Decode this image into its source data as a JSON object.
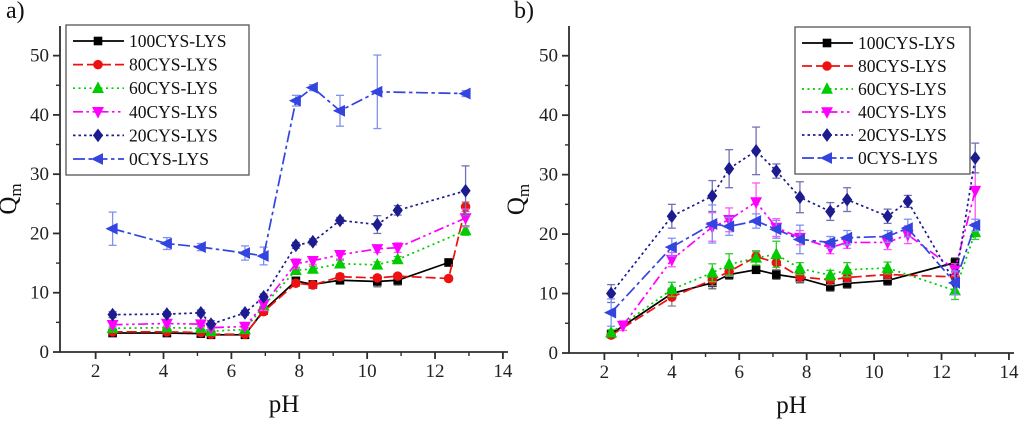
{
  "figure": {
    "panels": [
      {
        "label": "a)"
      },
      {
        "label": "b)"
      }
    ]
  },
  "chart_data": [
    {
      "panel": "a",
      "type": "line",
      "title": "",
      "xlabel": "pH",
      "ylabel": "Q",
      "ylabel_subscript": "m",
      "xlim": [
        0.95,
        14.15
      ],
      "ylim": [
        0,
        55
      ],
      "x_major_ticks": [
        2,
        4,
        6,
        8,
        10,
        12,
        14
      ],
      "x_minor_ticks": [
        3,
        5,
        7,
        9,
        11,
        13
      ],
      "y_major_ticks": [
        0,
        10,
        20,
        30,
        40,
        50
      ],
      "y_minor_ticks": [
        5,
        15,
        25,
        35,
        45
      ],
      "grid": false,
      "legend_position": "top-left",
      "x": [
        2.5,
        4.1,
        5.1,
        5.4,
        6.4,
        6.95,
        7.9,
        8.4,
        9.2,
        10.3,
        10.9,
        12.4,
        12.9
      ],
      "series": [
        {
          "name": "100CYS-LYS",
          "color": "#000000",
          "error_color": "#666666",
          "marker": "square",
          "line_style": "solid",
          "values": [
            3.2,
            3.2,
            3.1,
            2.9,
            2.9,
            7.0,
            12.0,
            11.4,
            12.1,
            11.9,
            12.1,
            15.1,
            null
          ],
          "errors": [
            0.3,
            0.3,
            0.3,
            0.3,
            0.3,
            0.4,
            0.5,
            0.4,
            0.6,
            0.9,
            0.8,
            0.5,
            null
          ]
        },
        {
          "name": "80CYS-LYS",
          "color": "#ee1111",
          "error_color": "#888888",
          "marker": "circle",
          "line_style": "dash",
          "values": [
            3.4,
            3.4,
            3.3,
            3.0,
            3.0,
            6.8,
            11.6,
            11.3,
            12.7,
            12.5,
            12.8,
            12.4,
            24.5
          ],
          "errors": [
            0.3,
            0.3,
            0.3,
            0.3,
            0.3,
            0.4,
            0.5,
            0.4,
            0.5,
            0.4,
            0.4,
            0.4,
            0.8
          ]
        },
        {
          "name": "60CYS-LYS",
          "color": "#00cc00",
          "error_color": "#33cc33",
          "marker": "triangle-up",
          "line_style": "dot",
          "values": [
            4.0,
            4.1,
            4.0,
            3.5,
            3.8,
            7.8,
            13.8,
            14.0,
            14.9,
            14.7,
            15.6,
            null,
            20.5
          ],
          "errors": [
            0.3,
            0.3,
            0.4,
            0.3,
            0.3,
            0.6,
            0.5,
            0.5,
            0.6,
            0.5,
            0.5,
            null,
            0.8
          ]
        },
        {
          "name": "40CYS-LYS",
          "color": "#ff00ff",
          "error_color": "#ff55ff",
          "marker": "triangle-down",
          "line_style": "dashdotdot",
          "values": [
            4.6,
            4.8,
            4.7,
            4.1,
            4.3,
            8.0,
            14.9,
            15.4,
            16.4,
            17.4,
            17.6,
            null,
            22.6
          ],
          "errors": [
            0.4,
            0.5,
            0.5,
            0.4,
            0.4,
            1.0,
            0.8,
            0.6,
            0.7,
            0.6,
            0.8,
            null,
            1.5
          ]
        },
        {
          "name": "20CYS-LYS",
          "color": "#1c1c8f",
          "error_color": "#7070b8",
          "marker": "diamond",
          "line_style": "shortdot",
          "values": [
            6.3,
            6.4,
            6.6,
            4.7,
            6.6,
            9.3,
            18.0,
            18.6,
            22.2,
            21.5,
            23.9,
            null,
            27.2
          ],
          "errors": [
            0.5,
            0.4,
            0.5,
            0.6,
            0.4,
            0.5,
            0.5,
            0.5,
            0.5,
            1.5,
            0.8,
            null,
            4.2
          ]
        },
        {
          "name": "0CYS-LYS",
          "color": "#3344e0",
          "error_color": "#7f92f0",
          "marker": "triangle-left",
          "line_style": "dashdot",
          "values": [
            20.8,
            18.3,
            17.7,
            null,
            16.7,
            16.2,
            42.4,
            44.6,
            40.7,
            43.9,
            null,
            null,
            43.6
          ],
          "errors": [
            2.8,
            1.0,
            0.6,
            null,
            1.2,
            1.5,
            0.9,
            0.5,
            2.6,
            6.2,
            null,
            null,
            0.5
          ]
        }
      ]
    },
    {
      "panel": "b",
      "type": "line",
      "title": "",
      "xlabel": "pH",
      "ylabel": "Q",
      "ylabel_subscript": "m",
      "xlim": [
        0.95,
        14.15
      ],
      "ylim": [
        0,
        55
      ],
      "x_major_ticks": [
        2,
        4,
        6,
        8,
        10,
        12,
        14
      ],
      "x_minor_ticks": [
        3,
        5,
        7,
        9,
        11,
        13
      ],
      "y_major_ticks": [
        0,
        10,
        20,
        30,
        40,
        50
      ],
      "y_minor_ticks": [
        5,
        15,
        25,
        35,
        45
      ],
      "grid": false,
      "legend_position": "top-right",
      "x": [
        2.2,
        2.55,
        4.0,
        5.2,
        5.7,
        6.5,
        7.1,
        7.8,
        8.7,
        9.2,
        10.4,
        11.0,
        12.4,
        13.0
      ],
      "series": [
        {
          "name": "100CYS-LYS",
          "color": "#000000",
          "error_color": "#666666",
          "marker": "square",
          "line_style": "solid",
          "values": [
            3.2,
            null,
            10.0,
            11.8,
            13.2,
            14.0,
            13.2,
            12.6,
            11.2,
            11.7,
            12.2,
            null,
            15.2,
            null
          ],
          "errors": [
            0.4,
            null,
            0.8,
            1.0,
            0.8,
            0.6,
            0.8,
            0.8,
            0.8,
            0.8,
            0.8,
            null,
            0.8,
            null
          ]
        },
        {
          "name": "80CYS-LYS",
          "color": "#ee1111",
          "error_color": "#888888",
          "marker": "circle",
          "line_style": "dash",
          "values": [
            3.0,
            null,
            9.4,
            12.3,
            13.7,
            16.2,
            15.2,
            12.8,
            12.3,
            12.7,
            13.2,
            null,
            12.8,
            null
          ],
          "errors": [
            0.4,
            null,
            1.5,
            1.0,
            0.8,
            0.8,
            1.2,
            0.8,
            0.8,
            0.8,
            0.8,
            null,
            0.8,
            null
          ]
        },
        {
          "name": "60CYS-LYS",
          "color": "#00cc00",
          "error_color": "#33cc33",
          "marker": "triangle-up",
          "line_style": "dot",
          "values": [
            3.4,
            null,
            10.7,
            13.5,
            14.9,
            16.0,
            16.6,
            14.2,
            13.1,
            14.0,
            14.3,
            null,
            10.5,
            20.3
          ],
          "errors": [
            0.5,
            null,
            1.2,
            1.5,
            1.8,
            1.2,
            2.2,
            1.0,
            0.8,
            1.2,
            1.0,
            null,
            1.5,
            1.2
          ]
        },
        {
          "name": "40CYS-LYS",
          "color": "#ff00ff",
          "error_color": "#ff55ff",
          "marker": "triangle-down",
          "line_style": "dashdotdot",
          "values": [
            null,
            4.6,
            15.7,
            21.2,
            22.4,
            25.4,
            21.1,
            19.4,
            17.7,
            18.6,
            18.6,
            19.9,
            14.0,
            27.3
          ],
          "errors": [
            null,
            0.8,
            1.2,
            2.4,
            2.0,
            3.2,
            1.5,
            1.2,
            1.0,
            1.0,
            1.2,
            1.5,
            1.0,
            5.5
          ]
        },
        {
          "name": "20CYS-LYS",
          "color": "#1c1c8f",
          "error_color": "#7070b8",
          "marker": "diamond",
          "line_style": "shortdot",
          "values": [
            10.0,
            null,
            23.0,
            26.4,
            31.0,
            34.0,
            30.6,
            26.2,
            23.8,
            25.8,
            23.0,
            25.5,
            11.8,
            32.8
          ],
          "errors": [
            1.5,
            null,
            2.0,
            2.6,
            3.2,
            4.0,
            1.2,
            2.6,
            1.5,
            2.0,
            1.2,
            1.0,
            2.0,
            2.5
          ]
        },
        {
          "name": "0CYS-LYS",
          "color": "#3344e0",
          "error_color": "#7f92f0",
          "marker": "triangle-left",
          "line_style": "dashdot",
          "values": [
            6.8,
            null,
            17.8,
            21.7,
            21.3,
            22.2,
            20.8,
            19.1,
            18.6,
            19.4,
            19.6,
            21.0,
            11.8,
            21.5
          ],
          "errors": [
            2.3,
            null,
            1.5,
            3.2,
            1.5,
            1.2,
            1.5,
            2.4,
            1.0,
            1.2,
            1.0,
            1.5,
            2.0,
            1.0
          ]
        }
      ]
    }
  ]
}
